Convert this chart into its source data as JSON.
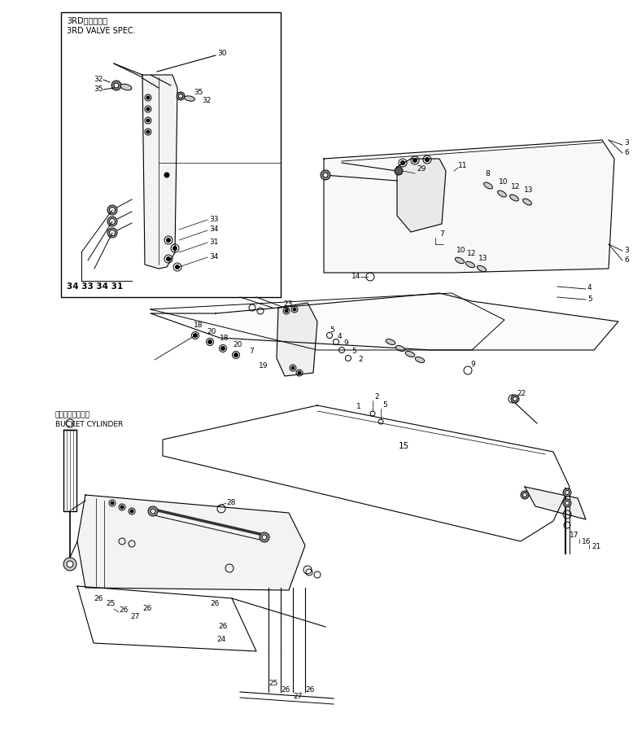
{
  "bg_color": "#ffffff",
  "line_color": "#000000",
  "fig_width": 7.78,
  "fig_height": 8.98,
  "dpi": 100,
  "label_fontsize": 6.5,
  "inset_title_jp": "3RDバルブ仕様",
  "inset_title_en": "3RD VALVE SPEC.",
  "bucket_cyl_jp": "バケットシリンダ",
  "bucket_cyl_en": "BUCKET CYLINDER"
}
